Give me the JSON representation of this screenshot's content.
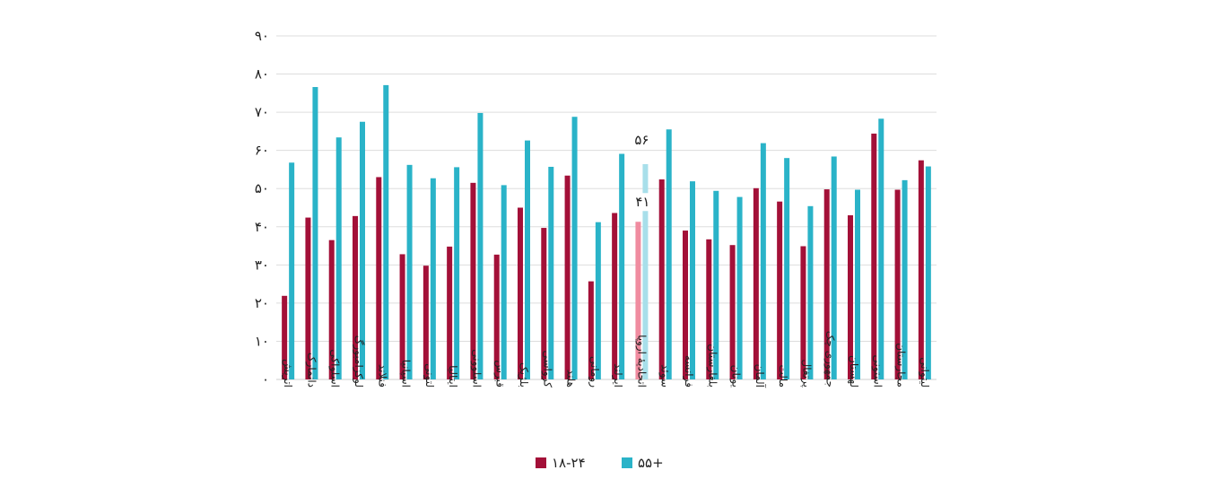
{
  "chart_data": {
    "type": "bar",
    "categories": [
      "اتریش",
      "دانمارک",
      "اسلواکی",
      "لوکزامبورگ",
      "فنلاند",
      "اسپانیا",
      "لتونی",
      "ایتالیا",
      "اسلوونی",
      "قبرس",
      "بلژیک",
      "کرواسی",
      "هلند",
      "رومانی",
      "ایرلند",
      "اتحادیهٔ اروپا",
      "سوئد",
      "فرانسه",
      "بلغارستان",
      "یونان",
      "آلمان",
      "مالت",
      "پرتغال",
      "جمهوری چک",
      "لهستان",
      "استونی",
      "مجارستان",
      "لیتوانی"
    ],
    "series": [
      {
        "name": "۱۸-۲۴",
        "color": "#a31038",
        "values": [
          21.9,
          42.4,
          36.5,
          42.8,
          53,
          32.8,
          29.8,
          34.8,
          51.5,
          32.7,
          45,
          39.7,
          53.4,
          25.7,
          43.6,
          41.3,
          52.4,
          39,
          36.7,
          35.2,
          50.1,
          46.6,
          34.9,
          49.8,
          43,
          64.4,
          49.7,
          57.4
        ]
      },
      {
        "name": "۵۵+",
        "color": "#2ab3c8",
        "values": [
          56.8,
          76.6,
          63.4,
          67.5,
          77.1,
          56.2,
          52.7,
          55.6,
          69.8,
          50.9,
          62.6,
          55.7,
          68.8,
          41.2,
          59.1,
          56.4,
          65.5,
          51.9,
          49.4,
          47.8,
          61.9,
          58,
          45.4,
          58.4,
          49.7,
          68.3,
          52.2,
          55.8
        ]
      }
    ],
    "highlight_category": "اتحادیهٔ اروپا",
    "highlight_colors": [
      "#f08ca0",
      "#a8dfea"
    ],
    "data_labels": [
      "۵۶",
      "۴۱"
    ],
    "ylim": [
      0,
      90
    ],
    "yticks": [
      "۰",
      "۱۰",
      "۲۰",
      "۳۰",
      "۴۰",
      "۵۰",
      "۶۰",
      "۷۰",
      "۸۰",
      "۹۰"
    ],
    "grid": true,
    "legend_position": "bottom"
  }
}
